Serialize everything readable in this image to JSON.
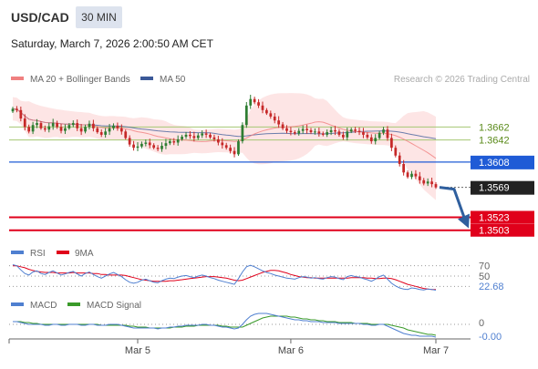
{
  "header": {
    "symbol": "USD/CAD",
    "timeframe": "30 MIN",
    "datetime": "Saturday, March 7, 2026 2:00:50 AM CET"
  },
  "legend": {
    "ma20_label": "MA 20 + Bollinger Bands",
    "ma50_label": "MA 50",
    "source": "Research © 2026 Trading Central",
    "rsi_label": "RSI",
    "rsi_ma_label": "9MA",
    "macd_label": "MACD",
    "macd_signal_label": "MACD Signal"
  },
  "colors": {
    "ma20": "#f08080",
    "ma50": "#3b5998",
    "bollinger_fill": "#fde0e0",
    "candle_up": "#2e7d32",
    "candle_down": "#c62828",
    "resistance_line": "#a5c773",
    "pivot_line": "#1f5bd6",
    "support_line": "#e0001b",
    "current_price_label": "#222222",
    "arrow": "#2f5f9e",
    "rsi": "#4f7fd0",
    "rsi_ma": "#e0001b",
    "macd": "#4f7fd0",
    "macd_signal": "#3a9a2a"
  },
  "chart_data": [
    {
      "type": "candlestick",
      "panel": "price",
      "x_tick_labels": [
        "Mar 5",
        "Mar 6",
        "Mar 7"
      ],
      "ylim": [
        1.349,
        1.372
      ],
      "levels": [
        {
          "name": "resistance",
          "value": "1.3662",
          "kind": "resistance"
        },
        {
          "name": "resistance",
          "value": "1.3642",
          "kind": "resistance"
        },
        {
          "name": "pivot",
          "value": "1.3608",
          "kind": "pivot"
        },
        {
          "name": "current",
          "value": "1.3569",
          "kind": "current"
        },
        {
          "name": "support",
          "value": "1.3523",
          "kind": "support"
        },
        {
          "name": "support",
          "value": "1.3503",
          "kind": "support"
        }
      ],
      "forecast_arrow": {
        "from": 1.3569,
        "to": 1.3523,
        "direction": "down"
      },
      "close": [
        1.369,
        1.3688,
        1.3675,
        1.3662,
        1.3655,
        1.3665,
        1.3668,
        1.366,
        1.3658,
        1.3663,
        1.3668,
        1.3662,
        1.3656,
        1.366,
        1.3665,
        1.3668,
        1.366,
        1.3655,
        1.3662,
        1.3667,
        1.366,
        1.3654,
        1.365,
        1.3655,
        1.366,
        1.3664,
        1.366,
        1.3655,
        1.3645,
        1.3635,
        1.363,
        1.3632,
        1.3636,
        1.3638,
        1.3634,
        1.363,
        1.3628,
        1.3633,
        1.3637,
        1.364,
        1.3638,
        1.3643,
        1.3647,
        1.365,
        1.3648,
        1.3645,
        1.3649,
        1.3652,
        1.365,
        1.3646,
        1.3643,
        1.3638,
        1.3634,
        1.363,
        1.3625,
        1.362,
        1.364,
        1.3665,
        1.3695,
        1.3705,
        1.37,
        1.3695,
        1.3688,
        1.3683,
        1.3678,
        1.3672,
        1.3666,
        1.366,
        1.3656,
        1.3654,
        1.3652,
        1.3656,
        1.3659,
        1.3657,
        1.3654,
        1.3655,
        1.3652,
        1.365,
        1.3654,
        1.3657,
        1.3655,
        1.365,
        1.3646,
        1.3655,
        1.3658,
        1.3656,
        1.3654,
        1.365,
        1.3646,
        1.364,
        1.3645,
        1.3653,
        1.3658,
        1.3645,
        1.363,
        1.3618,
        1.3605,
        1.3592,
        1.3585,
        1.359,
        1.3586,
        1.358,
        1.3575,
        1.3578,
        1.3574,
        1.3569
      ]
    },
    {
      "type": "line",
      "panel": "rsi",
      "series": [
        {
          "name": "RSI",
          "values": [
            72,
            70,
            62,
            55,
            52,
            58,
            60,
            55,
            53,
            57,
            60,
            56,
            52,
            54,
            57,
            59,
            54,
            50,
            55,
            58,
            53,
            49,
            46,
            50,
            54,
            57,
            53,
            49,
            43,
            38,
            36,
            38,
            42,
            44,
            41,
            38,
            37,
            41,
            44,
            46,
            45,
            48,
            50,
            51,
            49,
            47,
            50,
            52,
            50,
            47,
            45,
            42,
            40,
            38,
            36,
            34,
            45,
            58,
            68,
            71,
            68,
            64,
            60,
            57,
            55,
            52,
            50,
            48,
            46,
            45,
            44,
            47,
            49,
            48,
            46,
            47,
            45,
            44,
            47,
            49,
            48,
            45,
            43,
            49,
            51,
            49,
            48,
            45,
            43,
            40,
            44,
            49,
            52,
            44,
            36,
            31,
            27,
            25,
            24,
            27,
            26,
            24,
            23,
            25,
            24,
            22.68
          ]
        },
        {
          "name": "9MA",
          "values": [
            70,
            70,
            68,
            66,
            63,
            61,
            59,
            58,
            57,
            57,
            57,
            56,
            56,
            56,
            56,
            57,
            56,
            56,
            56,
            56,
            55,
            55,
            53,
            53,
            52,
            52,
            52,
            52,
            51,
            49,
            47,
            45,
            43,
            42,
            41,
            40,
            40,
            40,
            40,
            41,
            41,
            42,
            43,
            44,
            45,
            46,
            47,
            48,
            49,
            49,
            49,
            48,
            47,
            46,
            44,
            42,
            41,
            42,
            45,
            48,
            51,
            54,
            57,
            59,
            61,
            61,
            60,
            58,
            56,
            53,
            51,
            49,
            48,
            47,
            47,
            46,
            46,
            46,
            46,
            46,
            46,
            46,
            46,
            46,
            47,
            47,
            47,
            47,
            46,
            46,
            45,
            45,
            46,
            46,
            45,
            43,
            40,
            37,
            34,
            32,
            30,
            28,
            26,
            25,
            24,
            24
          ]
        }
      ],
      "reference_levels": [
        "70",
        "50"
      ],
      "last_value": "22.68"
    },
    {
      "type": "line",
      "panel": "macd",
      "series": [
        {
          "name": "MACD",
          "values": [
            0.0003,
            0.0003,
            0.0002,
            0.0001,
            0.0,
            0.0,
            0.0,
            0.0,
            -0.0001,
            -0.0001,
            0.0,
            0.0,
            -0.0001,
            -0.0001,
            0.0,
            0.0,
            0.0,
            -0.0001,
            -0.0001,
            0.0,
            0.0,
            -0.0001,
            -0.0001,
            -0.0001,
            0.0,
            0.0,
            0.0,
            -0.0001,
            -0.0002,
            -0.0003,
            -0.0004,
            -0.0004,
            -0.0004,
            -0.0004,
            -0.0004,
            -0.0004,
            -0.0005,
            -0.0004,
            -0.0004,
            -0.0003,
            -0.0003,
            -0.0002,
            -0.0002,
            -0.0001,
            -0.0001,
            -0.0001,
            -0.0001,
            0.0,
            0.0,
            -0.0001,
            -0.0001,
            -0.0002,
            -0.0003,
            -0.0003,
            -0.0004,
            -0.0005,
            -0.0004,
            0.0,
            0.0005,
            0.0009,
            0.0011,
            0.0012,
            0.0012,
            0.0012,
            0.0011,
            0.001,
            0.0009,
            0.0008,
            0.0007,
            0.0006,
            0.0005,
            0.0005,
            0.0004,
            0.0004,
            0.0003,
            0.0003,
            0.0003,
            0.0002,
            0.0002,
            0.0002,
            0.0002,
            0.0001,
            0.0001,
            0.0001,
            0.0001,
            0.0001,
            0.0001,
            0.0,
            0.0,
            -0.0001,
            -0.0001,
            0.0,
            0.0,
            -0.0002,
            -0.0004,
            -0.0006,
            -0.0008,
            -0.001,
            -0.0011,
            -0.0012,
            -0.0012,
            -0.0013,
            -0.0013,
            -0.0013,
            -0.0013,
            -0.0014
          ]
        },
        {
          "name": "MACD Signal",
          "values": [
            0.0003,
            0.0003,
            0.0003,
            0.0002,
            0.0002,
            0.0001,
            0.0001,
            0.0,
            0.0,
            0.0,
            0.0,
            0.0,
            0.0,
            0.0,
            0.0,
            0.0,
            0.0,
            0.0,
            0.0,
            0.0,
            0.0,
            0.0,
            -0.0001,
            -0.0001,
            -0.0001,
            -0.0001,
            -0.0001,
            -0.0001,
            -0.0001,
            -0.0002,
            -0.0002,
            -0.0003,
            -0.0003,
            -0.0003,
            -0.0004,
            -0.0004,
            -0.0004,
            -0.0004,
            -0.0004,
            -0.0004,
            -0.0003,
            -0.0003,
            -0.0003,
            -0.0002,
            -0.0002,
            -0.0002,
            -0.0001,
            -0.0001,
            -0.0001,
            -0.0001,
            -0.0001,
            -0.0001,
            -0.0002,
            -0.0002,
            -0.0003,
            -0.0003,
            -0.0003,
            -0.0003,
            -0.0001,
            0.0001,
            0.0003,
            0.0005,
            0.0007,
            0.0008,
            0.0009,
            0.0009,
            0.0009,
            0.0009,
            0.0009,
            0.0008,
            0.0008,
            0.0007,
            0.0006,
            0.0006,
            0.0005,
            0.0005,
            0.0004,
            0.0004,
            0.0003,
            0.0003,
            0.0003,
            0.0002,
            0.0002,
            0.0002,
            0.0002,
            0.0001,
            0.0001,
            0.0001,
            0.0001,
            0.0,
            0.0,
            0.0,
            0.0,
            0.0,
            -0.0001,
            -0.0002,
            -0.0003,
            -0.0004,
            -0.0006,
            -0.0007,
            -0.0008,
            -0.0009,
            -0.001,
            -0.0011,
            -0.0011,
            -0.0012
          ]
        }
      ],
      "reference_levels": [
        "0"
      ],
      "last_value": "-0.00"
    }
  ]
}
